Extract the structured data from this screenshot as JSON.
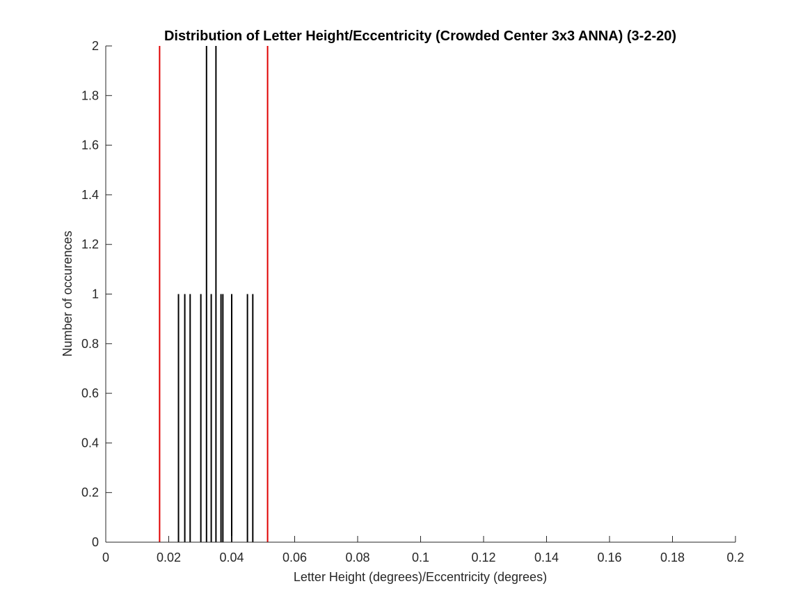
{
  "chart_data": {
    "type": "bar",
    "title": "Distribution of Letter Height/Eccentricity (Crowded Center 3x3 ANNA) (3-2-20)",
    "xlabel": "Letter Height (degrees)/Eccentricity (degrees)",
    "ylabel": "Number of occurences",
    "xlim": [
      0,
      0.2
    ],
    "ylim": [
      0,
      2
    ],
    "xticks": [
      0,
      0.02,
      0.04,
      0.06,
      0.08,
      0.1,
      0.12,
      0.14,
      0.16,
      0.18,
      0.2
    ],
    "xtick_labels": [
      "0",
      "0.02",
      "0.04",
      "0.06",
      "0.08",
      "0.1",
      "0.12",
      "0.14",
      "0.16",
      "0.18",
      "0.2"
    ],
    "yticks": [
      0,
      0.2,
      0.4,
      0.6,
      0.8,
      1,
      1.2,
      1.4,
      1.6,
      1.8,
      2
    ],
    "ytick_labels": [
      "0",
      "0.2",
      "0.4",
      "0.6",
      "0.8",
      "1",
      "1.2",
      "1.4",
      "1.6",
      "1.8",
      "2"
    ],
    "grid": false,
    "series": [
      {
        "color": "#000000",
        "x": [
          0.0231,
          0.0251,
          0.0268,
          0.0302,
          0.032,
          0.0335,
          0.035,
          0.0366,
          0.0372,
          0.04,
          0.045,
          0.0467
        ],
        "values": [
          1,
          1,
          1,
          1,
          2,
          1,
          2,
          1,
          1,
          1,
          1,
          1
        ]
      }
    ],
    "reference_lines": {
      "color": "#e00000",
      "x": [
        0.0171,
        0.0514
      ]
    }
  }
}
